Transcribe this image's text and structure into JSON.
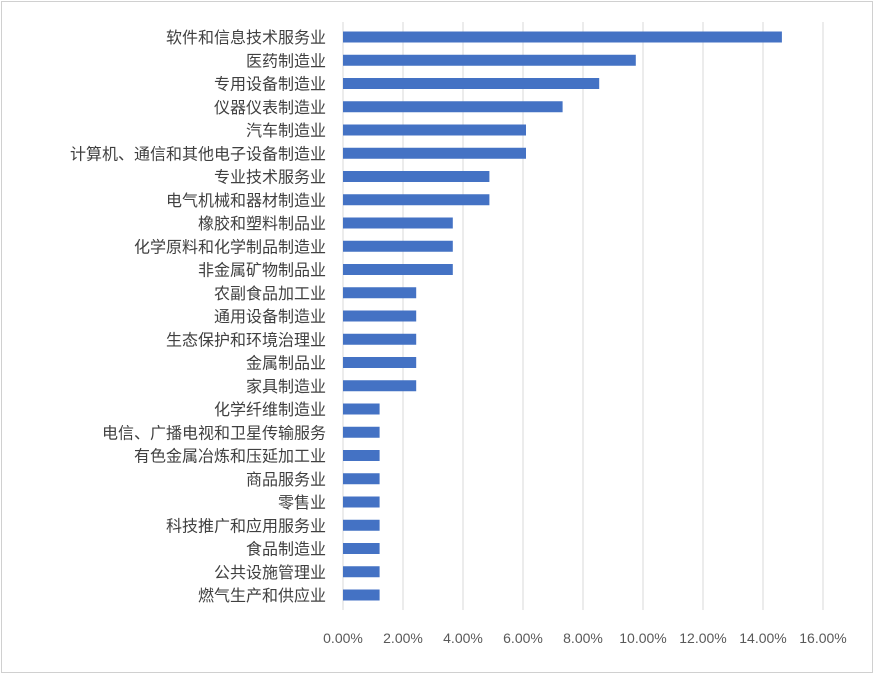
{
  "chart_data": {
    "type": "bar",
    "orientation": "horizontal",
    "categories": [
      "软件和信息技术服务业",
      "医药制造业",
      "专用设备制造业",
      "仪器仪表制造业",
      "汽车制造业",
      "计算机、通信和其他电子设备制造业",
      "专业技术服务业",
      "电气机械和器材制造业",
      "橡胶和塑料制品业",
      "化学原料和化学制品制造业",
      "非金属矿物制品业",
      "农副食品加工业",
      "通用设备制造业",
      "生态保护和环境治理业",
      "金属制品业",
      "家具制造业",
      "化学纤维制造业",
      "电信、广播电视和卫星传输服务",
      "有色金属冶炼和压延加工业",
      "商品服务业",
      "零售业",
      "科技推广和应用服务业",
      "食品制造业",
      "公共设施管理业",
      "燃气生产和供应业"
    ],
    "values": [
      14.63,
      9.76,
      8.54,
      7.32,
      6.1,
      6.1,
      4.88,
      4.88,
      3.66,
      3.66,
      3.66,
      2.44,
      2.44,
      2.44,
      2.44,
      2.44,
      1.22,
      1.22,
      1.22,
      1.22,
      1.22,
      1.22,
      1.22,
      1.22,
      1.22
    ],
    "unit": "%",
    "xlim": [
      0,
      16
    ],
    "xticks": [
      0,
      2,
      4,
      6,
      8,
      10,
      12,
      14,
      16
    ],
    "xtick_labels": [
      "0.00%",
      "2.00%",
      "4.00%",
      "6.00%",
      "8.00%",
      "10.00%",
      "12.00%",
      "14.00%",
      "16.00%"
    ],
    "grid": true,
    "legend": "none",
    "bar_color": "#4472c4"
  }
}
